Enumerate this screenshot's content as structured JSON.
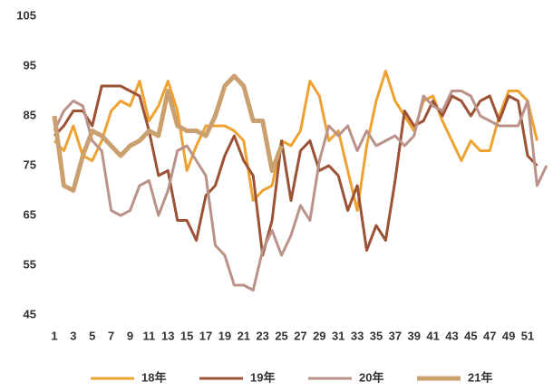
{
  "chart_data": {
    "type": "line",
    "categories": [
      1,
      null,
      3,
      null,
      5,
      null,
      7,
      null,
      9,
      null,
      11,
      null,
      13,
      null,
      15,
      null,
      17,
      null,
      19,
      null,
      21,
      null,
      23,
      null,
      25,
      null,
      27,
      null,
      29,
      null,
      31,
      null,
      33,
      null,
      35,
      null,
      37,
      null,
      39,
      null,
      41,
      null,
      43,
      null,
      45,
      null,
      47,
      null,
      49,
      null,
      51,
      null,
      null
    ],
    "ylim": [
      45,
      105
    ],
    "yticks": [
      45,
      55,
      65,
      75,
      85,
      95,
      105
    ],
    "grid": false,
    "legend": "bottom",
    "series": [
      {
        "name": "18年",
        "color": "#eda232",
        "width": 3,
        "values": [
          80,
          78,
          83,
          77,
          76,
          80,
          86,
          88,
          87,
          92,
          84,
          87,
          92,
          86,
          74,
          79,
          83,
          83,
          83,
          82,
          80,
          68,
          70,
          71,
          80,
          79,
          82,
          92,
          89,
          80,
          82,
          74,
          66,
          79,
          88,
          94,
          88,
          85,
          82,
          88,
          89,
          84,
          80,
          76,
          80,
          78,
          78,
          85,
          90,
          90,
          88,
          80,
          null
        ]
      },
      {
        "name": "19年",
        "color": "#9c5234",
        "width": 3,
        "values": [
          81,
          83,
          86,
          86,
          83,
          91,
          91,
          91,
          90,
          89,
          82,
          73,
          74,
          64,
          64,
          60,
          69,
          71,
          77,
          81,
          76,
          73,
          57,
          64,
          80,
          68,
          78,
          80,
          74,
          75,
          73,
          66,
          71,
          58,
          63,
          60,
          72,
          86,
          83,
          84,
          88,
          85,
          89,
          88,
          85,
          88,
          89,
          84,
          89,
          88,
          77,
          75,
          null
        ]
      },
      {
        "name": "20年",
        "color": "#ba928a",
        "width": 3,
        "values": [
          82,
          86,
          88,
          87,
          80,
          78,
          66,
          65,
          66,
          71,
          72,
          65,
          70,
          78,
          79,
          76,
          73,
          59,
          57,
          51,
          51,
          50,
          58,
          62,
          57,
          61,
          67,
          64,
          76,
          83,
          81,
          83,
          78,
          82,
          79,
          80,
          81,
          79,
          81,
          89,
          87,
          86,
          90,
          90,
          89,
          85,
          84,
          83,
          83,
          83,
          88,
          71,
          75
        ]
      },
      {
        "name": "21年",
        "color": "#c9a06e",
        "width": 5,
        "values": [
          85,
          71,
          70,
          77,
          82,
          81,
          79,
          77,
          79,
          80,
          82,
          81,
          90,
          83,
          82,
          82,
          81,
          85,
          91,
          93,
          91,
          84,
          84,
          74,
          79,
          null,
          null,
          null,
          null,
          null,
          null,
          null,
          null,
          null,
          null,
          null,
          null,
          null,
          null,
          null,
          null,
          null,
          null,
          null,
          null,
          null,
          null,
          null,
          null,
          null,
          null,
          null,
          null
        ]
      }
    ]
  }
}
